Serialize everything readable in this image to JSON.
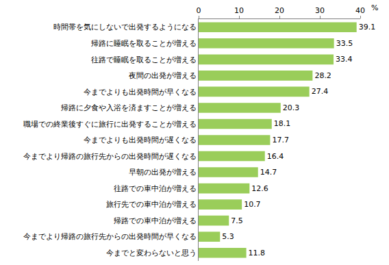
{
  "chart_data": {
    "type": "bar",
    "orientation": "horizontal",
    "categories": [
      "時間帯を気にしないで出発するようになる",
      "帰路に睡眠を取ることが増える",
      "往路で睡眠を取ることが増える",
      "夜間の出発が増える",
      "今までよりも出発時間が早くなる",
      "帰路に夕食や入浴を済ますことが増える",
      "職場での終業後すぐに旅行に出発することが増える",
      "今までよりも出発時間が遅くなる",
      "今までより帰路の旅行先からの出発時間が遅くなる",
      "早朝の出発が増える",
      "往路での車中泊が増える",
      "旅行先での車中泊が増える",
      "帰路での車中泊が増える",
      "今までより帰路の旅行先からの出発時間が早くなる",
      "今までと変わらないと思う"
    ],
    "values": [
      39.1,
      33.5,
      33.4,
      28.2,
      27.4,
      20.3,
      18.1,
      17.7,
      16.4,
      14.7,
      12.6,
      10.7,
      7.5,
      5.3,
      11.8
    ],
    "color": "#9acd5a",
    "x_label": "%",
    "xlim": [
      0,
      40
    ],
    "xticks": [
      0,
      10,
      20,
      30,
      40
    ],
    "grid": false,
    "data_labels": true
  }
}
